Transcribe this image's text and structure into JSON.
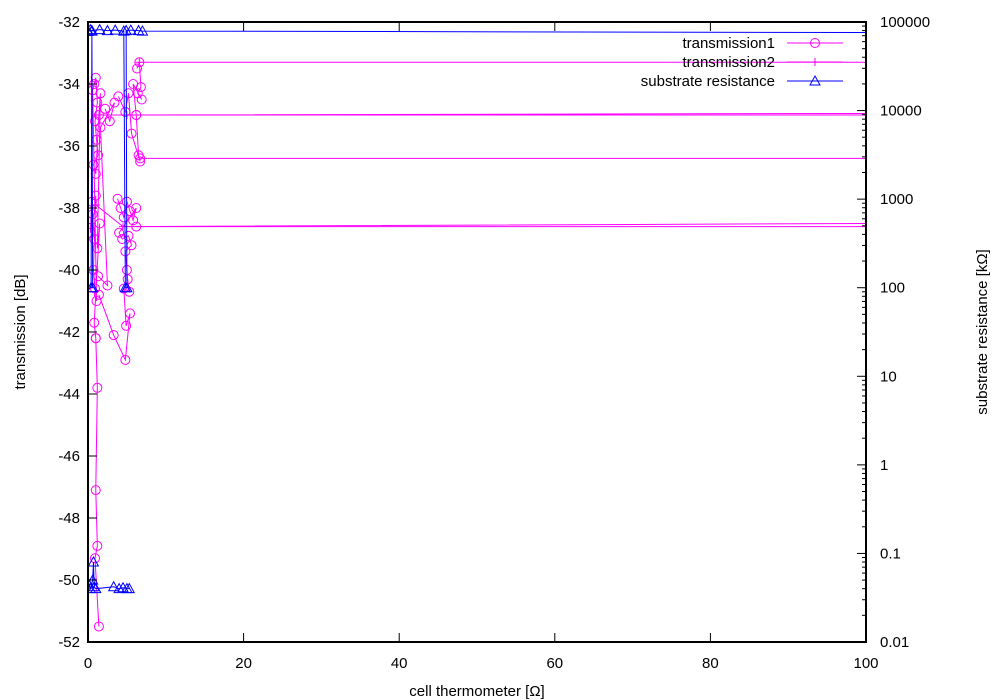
{
  "chart_data": {
    "type": "line",
    "title": "",
    "xlabel": "cell thermometer [Ω]",
    "ylabel": "transmission [dB]",
    "y2label": "substrate resistance [kΩ]",
    "xlim": [
      0,
      100
    ],
    "ylim": [
      -52,
      -32
    ],
    "y2lim": [
      0.01,
      100000
    ],
    "y2scale": "log",
    "grid": false,
    "legend_position": "top-right",
    "x_ticks": [
      "0",
      "20",
      "40",
      "60",
      "80",
      "100"
    ],
    "y_ticks": [
      "-32",
      "-34",
      "-36",
      "-38",
      "-40",
      "-42",
      "-44",
      "-46",
      "-48",
      "-50",
      "-52"
    ],
    "y2_ticks": [
      "100000",
      "10000",
      "1000",
      "100",
      "10",
      "1",
      "0.1",
      "0.01"
    ],
    "series": [
      {
        "name": "transmission1",
        "axis": "left",
        "marker": "circle",
        "color": "#ff00ff",
        "runs": [
          [
            [
              0.3,
              -38.8
            ],
            [
              0.5,
              -37.8
            ],
            [
              0.6,
              -38.2
            ],
            [
              0.8,
              -39.0
            ],
            [
              1.0,
              -37.6
            ],
            [
              0.7,
              -40.0
            ],
            [
              0.9,
              -40.6
            ],
            [
              1.1,
              -41.0
            ],
            [
              0.6,
              -34.2
            ],
            [
              0.8,
              -34.0
            ],
            [
              1.0,
              -33.8
            ],
            [
              1.2,
              -34.6
            ],
            [
              0.9,
              -35.2
            ],
            [
              1.1,
              -35.8
            ],
            [
              1.3,
              -36.3
            ],
            [
              0.7,
              -36.6
            ],
            [
              1.0,
              -36.9
            ],
            [
              1.4,
              -35.0
            ],
            [
              1.6,
              -34.3
            ],
            [
              1.2,
              -39.3
            ],
            [
              1.5,
              -38.5
            ],
            [
              0.8,
              -41.7
            ],
            [
              1.0,
              -42.2
            ]
          ],
          [
            [
              2.2,
              -34.8
            ],
            [
              2.8,
              -35.2
            ],
            [
              3.4,
              -34.6
            ],
            [
              1.6,
              -35.4
            ],
            [
              2.5,
              -40.5
            ],
            [
              1.3,
              -40.2
            ]
          ],
          [
            [
              3.8,
              -37.7
            ],
            [
              4.2,
              -38.0
            ],
            [
              4.6,
              -38.3
            ],
            [
              5.0,
              -37.8
            ],
            [
              5.4,
              -38.1
            ],
            [
              5.8,
              -38.4
            ],
            [
              6.2,
              -38.0
            ],
            [
              4.0,
              -38.8
            ],
            [
              4.4,
              -39.0
            ],
            [
              5.2,
              -38.9
            ],
            [
              5.6,
              -39.2
            ],
            [
              4.8,
              -39.4
            ],
            [
              5.0,
              -40.0
            ],
            [
              5.1,
              -40.3
            ],
            [
              5.3,
              -40.7
            ],
            [
              4.6,
              -40.6
            ],
            [
              4.9,
              -41.8
            ],
            [
              5.4,
              -41.4
            ],
            [
              4.8,
              -42.9
            ],
            [
              3.3,
              -42.1
            ],
            [
              1.4,
              -40.8
            ]
          ],
          [
            [
              6.3,
              -33.5
            ],
            [
              6.6,
              -33.3
            ],
            [
              6.8,
              -34.1
            ],
            [
              6.4,
              -34.3
            ],
            [
              6.9,
              -34.5
            ],
            [
              5.8,
              -34.0
            ],
            [
              6.2,
              -35.0
            ],
            [
              6.5,
              -36.3
            ],
            [
              6.7,
              -36.5
            ],
            [
              5.6,
              -35.6
            ],
            [
              5.2,
              -34.3
            ],
            [
              4.8,
              -34.9
            ],
            [
              3.9,
              -34.4
            ]
          ],
          [
            [
              1.0,
              -42.2
            ],
            [
              1.2,
              -43.8
            ],
            [
              1.0,
              -47.1
            ],
            [
              1.2,
              -48.9
            ],
            [
              0.9,
              -49.3
            ],
            [
              1.4,
              -51.5
            ]
          ],
          [
            [
              6.2,
              -35.0
            ],
            [
              100,
              -35.0
            ]
          ],
          [
            [
              6.7,
              -36.4
            ],
            [
              100,
              -36.4
            ]
          ],
          [
            [
              6.2,
              -38.6
            ],
            [
              100,
              -38.6
            ]
          ]
        ]
      },
      {
        "name": "transmission2",
        "axis": "left",
        "marker": "plus",
        "color": "#ff00ff",
        "runs": [
          [
            [
              6.6,
              -33.3
            ],
            [
              100,
              -33.3
            ]
          ],
          [
            [
              0.5,
              -38.5
            ],
            [
              1.0,
              -37.9
            ],
            [
              4.5,
              -38.6
            ],
            [
              100,
              -38.5
            ]
          ],
          [
            [
              1.0,
              -35.0
            ],
            [
              5.0,
              -35.0
            ],
            [
              100,
              -34.95
            ]
          ]
        ]
      },
      {
        "name": "substrate resistance",
        "axis": "right",
        "marker": "triangle",
        "color": "#0000ff",
        "runs": [
          [
            [
              0,
              78000
            ],
            [
              0.3,
              82000
            ],
            [
              0.5,
              79000
            ],
            [
              0.4,
              100
            ],
            [
              0.6,
              100
            ],
            [
              0.5,
              80000
            ],
            [
              1.5,
              82000
            ],
            [
              2.5,
              80000
            ],
            [
              3.5,
              81000
            ],
            [
              4.6,
              79000
            ],
            [
              4.8,
              100
            ],
            [
              5.0,
              100
            ],
            [
              4.9,
              80000
            ],
            [
              5.5,
              81000
            ],
            [
              6.5,
              80000
            ],
            [
              7.0,
              79000
            ],
            [
              100,
              76000
            ]
          ],
          [
            [
              0.1,
              0.045
            ],
            [
              0.3,
              0.04
            ],
            [
              0.6,
              0.05
            ],
            [
              0.7,
              0.08
            ],
            [
              0.8,
              0.042
            ],
            [
              1.0,
              0.04
            ],
            [
              3.3,
              0.042
            ],
            [
              4.0,
              0.04
            ],
            [
              4.5,
              0.041
            ],
            [
              5.0,
              0.04
            ],
            [
              5.3,
              0.04
            ]
          ]
        ]
      }
    ]
  }
}
